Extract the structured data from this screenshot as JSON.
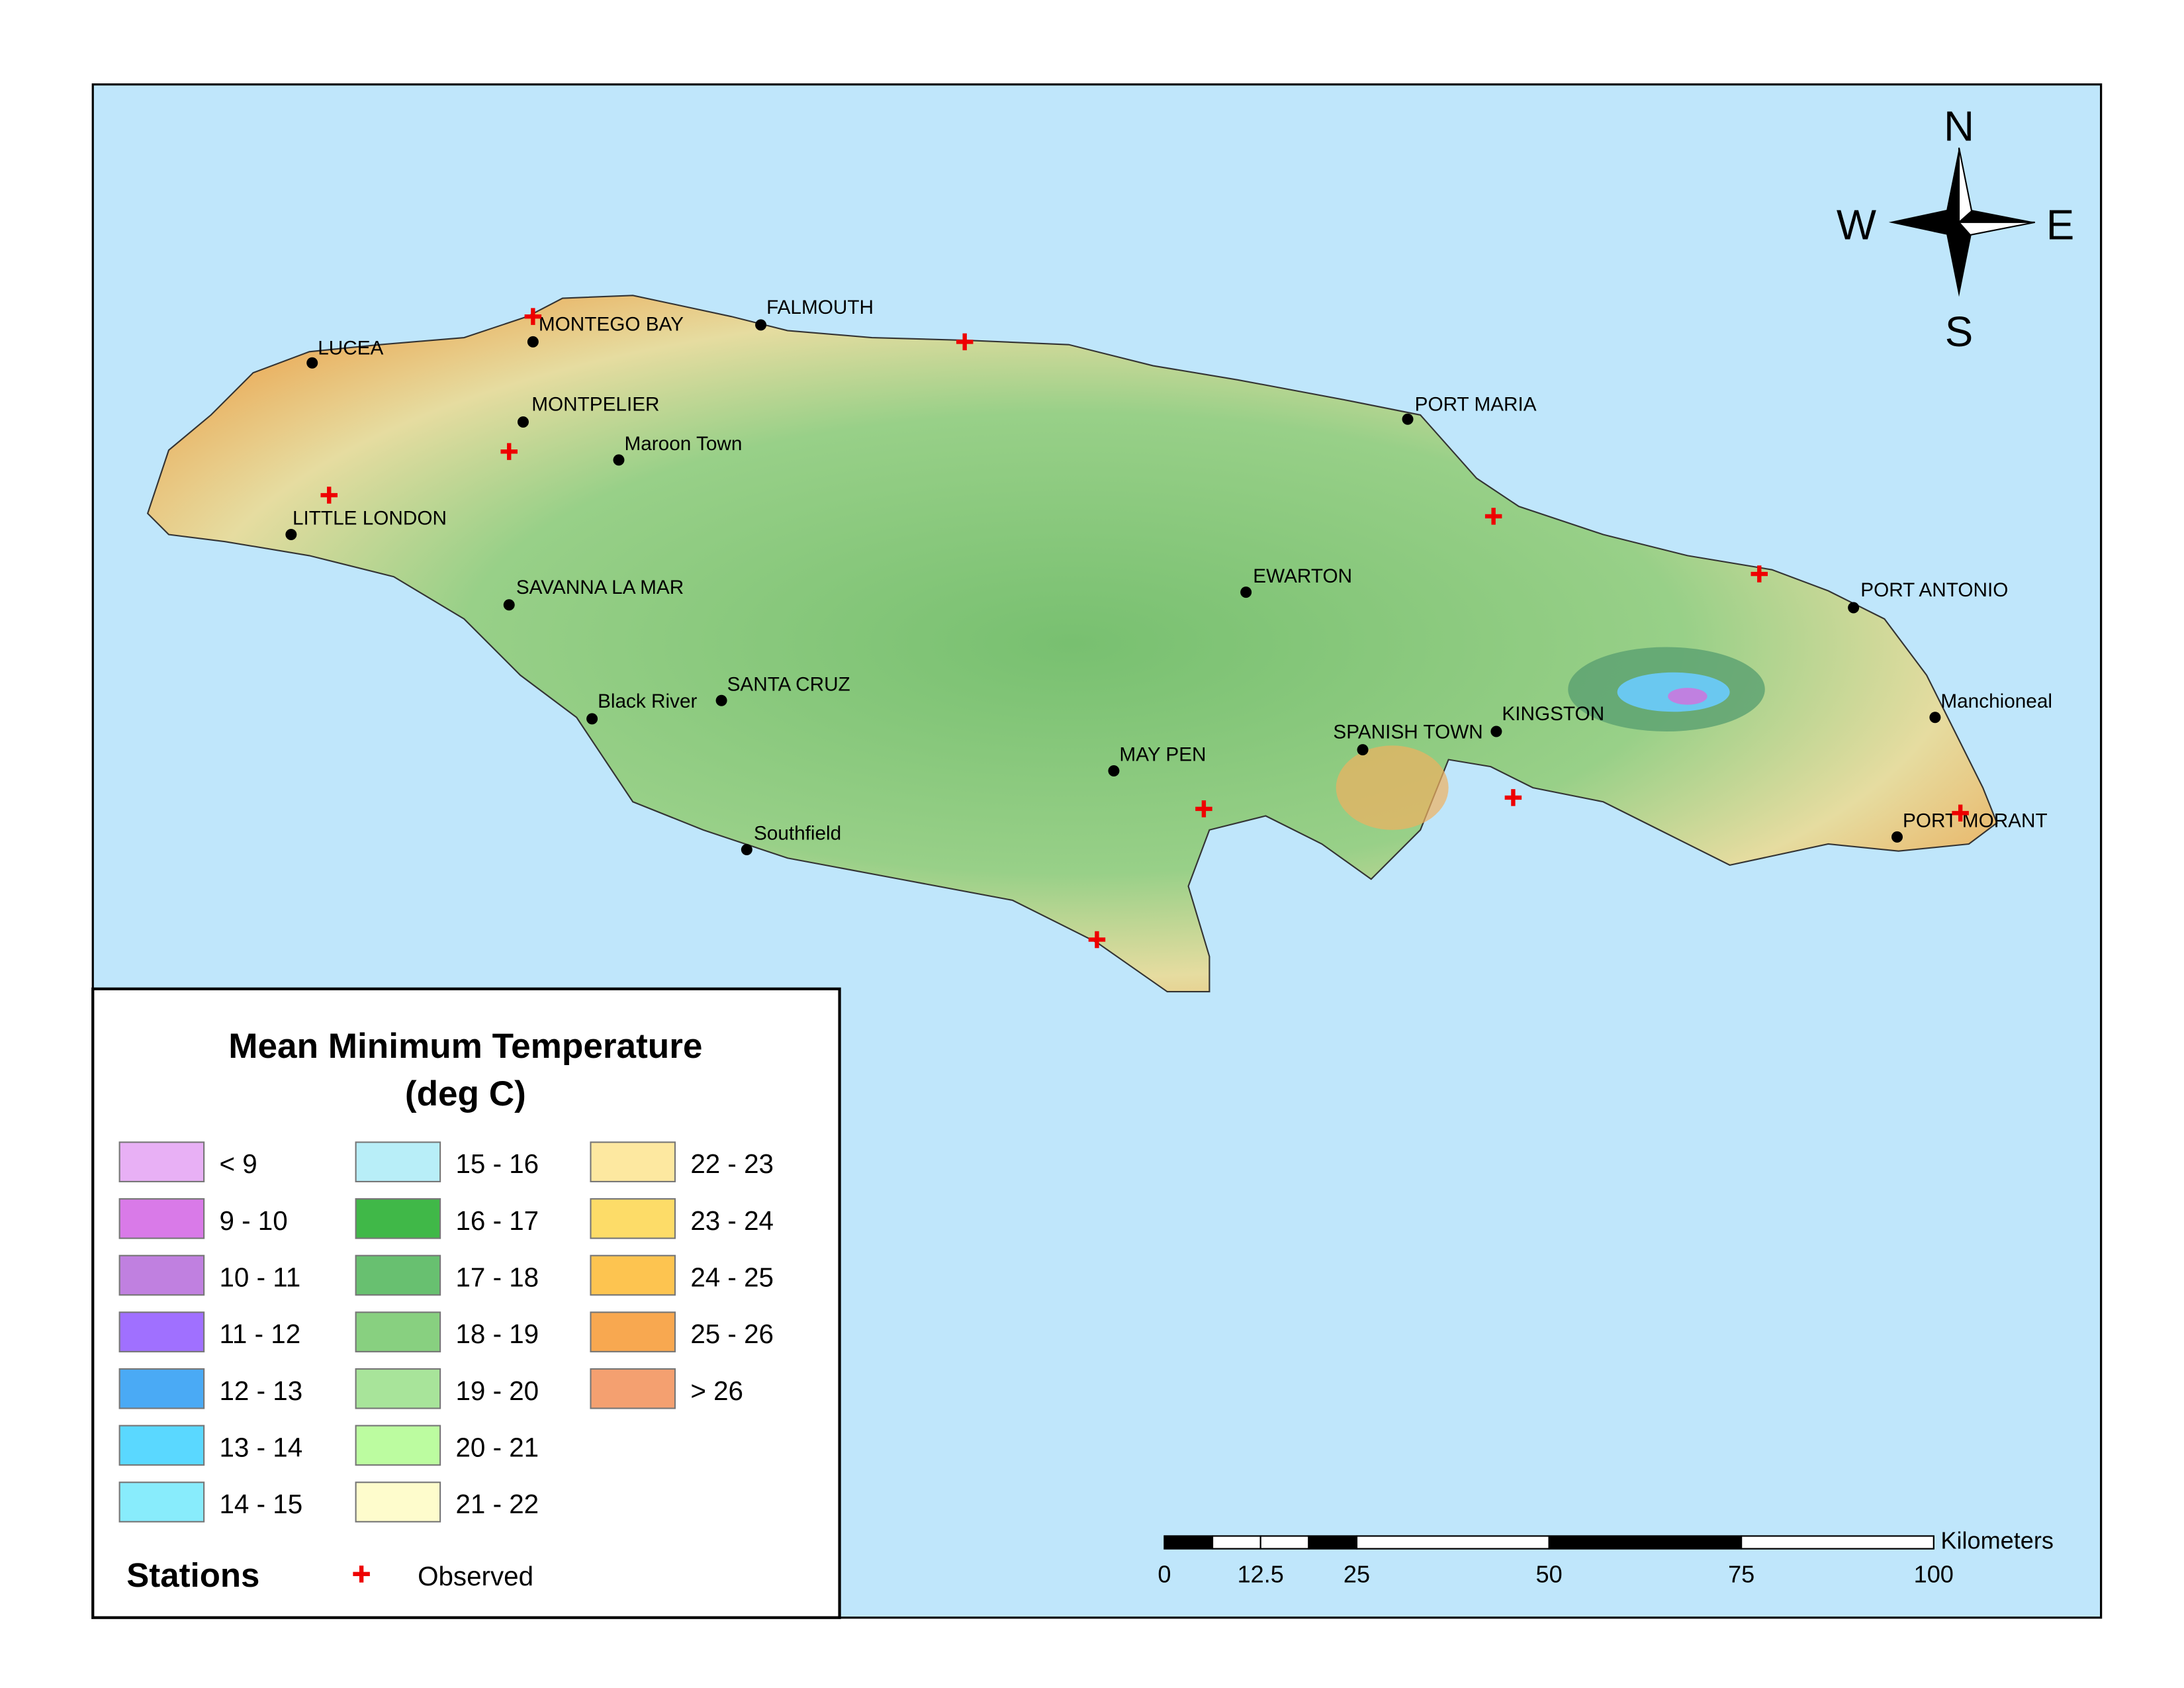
{
  "title": [
    "Mean Minimum Temperature",
    "(deg C)"
  ],
  "legend": [
    {
      "label": "< 9",
      "color": "#e8b0f5"
    },
    {
      "label": "9 - 10",
      "color": "#d97ae8"
    },
    {
      "label": "10 - 11",
      "color": "#c080e0"
    },
    {
      "label": "11 - 12",
      "color": "#a070ff"
    },
    {
      "label": "12 - 13",
      "color": "#4aaaf5"
    },
    {
      "label": "13 - 14",
      "color": "#5ad8ff"
    },
    {
      "label": "14 - 15",
      "color": "#88ecfc"
    },
    {
      "label": "15 - 16",
      "color": "#b8eef8"
    },
    {
      "label": "16 - 17",
      "color": "#40b848"
    },
    {
      "label": "17 - 18",
      "color": "#68c070"
    },
    {
      "label": "18 - 19",
      "color": "#88d080"
    },
    {
      "label": "19 - 20",
      "color": "#a8e49a"
    },
    {
      "label": "20 - 21",
      "color": "#bcfca0"
    },
    {
      "label": "21 - 22",
      "color": "#fefccc"
    },
    {
      "label": "22 - 23",
      "color": "#fde8a0"
    },
    {
      "label": "23 - 24",
      "color": "#fddc68"
    },
    {
      "label": "24 - 25",
      "color": "#fdc450"
    },
    {
      "label": "25 - 26",
      "color": "#f8a850"
    },
    {
      "label": "> 26",
      "color": "#f4a070"
    }
  ],
  "stations": {
    "heading": "Stations",
    "label": "Observed"
  },
  "compass": {
    "n": "N",
    "s": "S",
    "e": "E",
    "w": "W"
  },
  "scale_bar": {
    "unit": "Kilometers",
    "ticks": [
      0,
      12.5,
      25,
      50,
      75,
      100
    ]
  },
  "towns": [
    "LUCEA",
    "MONTEGO BAY",
    "FALMOUTH",
    "MONTPELIER",
    "Maroon Town",
    "LITTLE LONDON",
    "SAVANNA LA MAR",
    "Black River",
    "SANTA CRUZ",
    "Southfield",
    "MAY PEN",
    "EWARTON",
    "PORT MARIA",
    "SPANISH TOWN",
    "KINGSTON",
    "PORT ANTONIO",
    "Manchioneal",
    "PORT MORANT"
  ]
}
